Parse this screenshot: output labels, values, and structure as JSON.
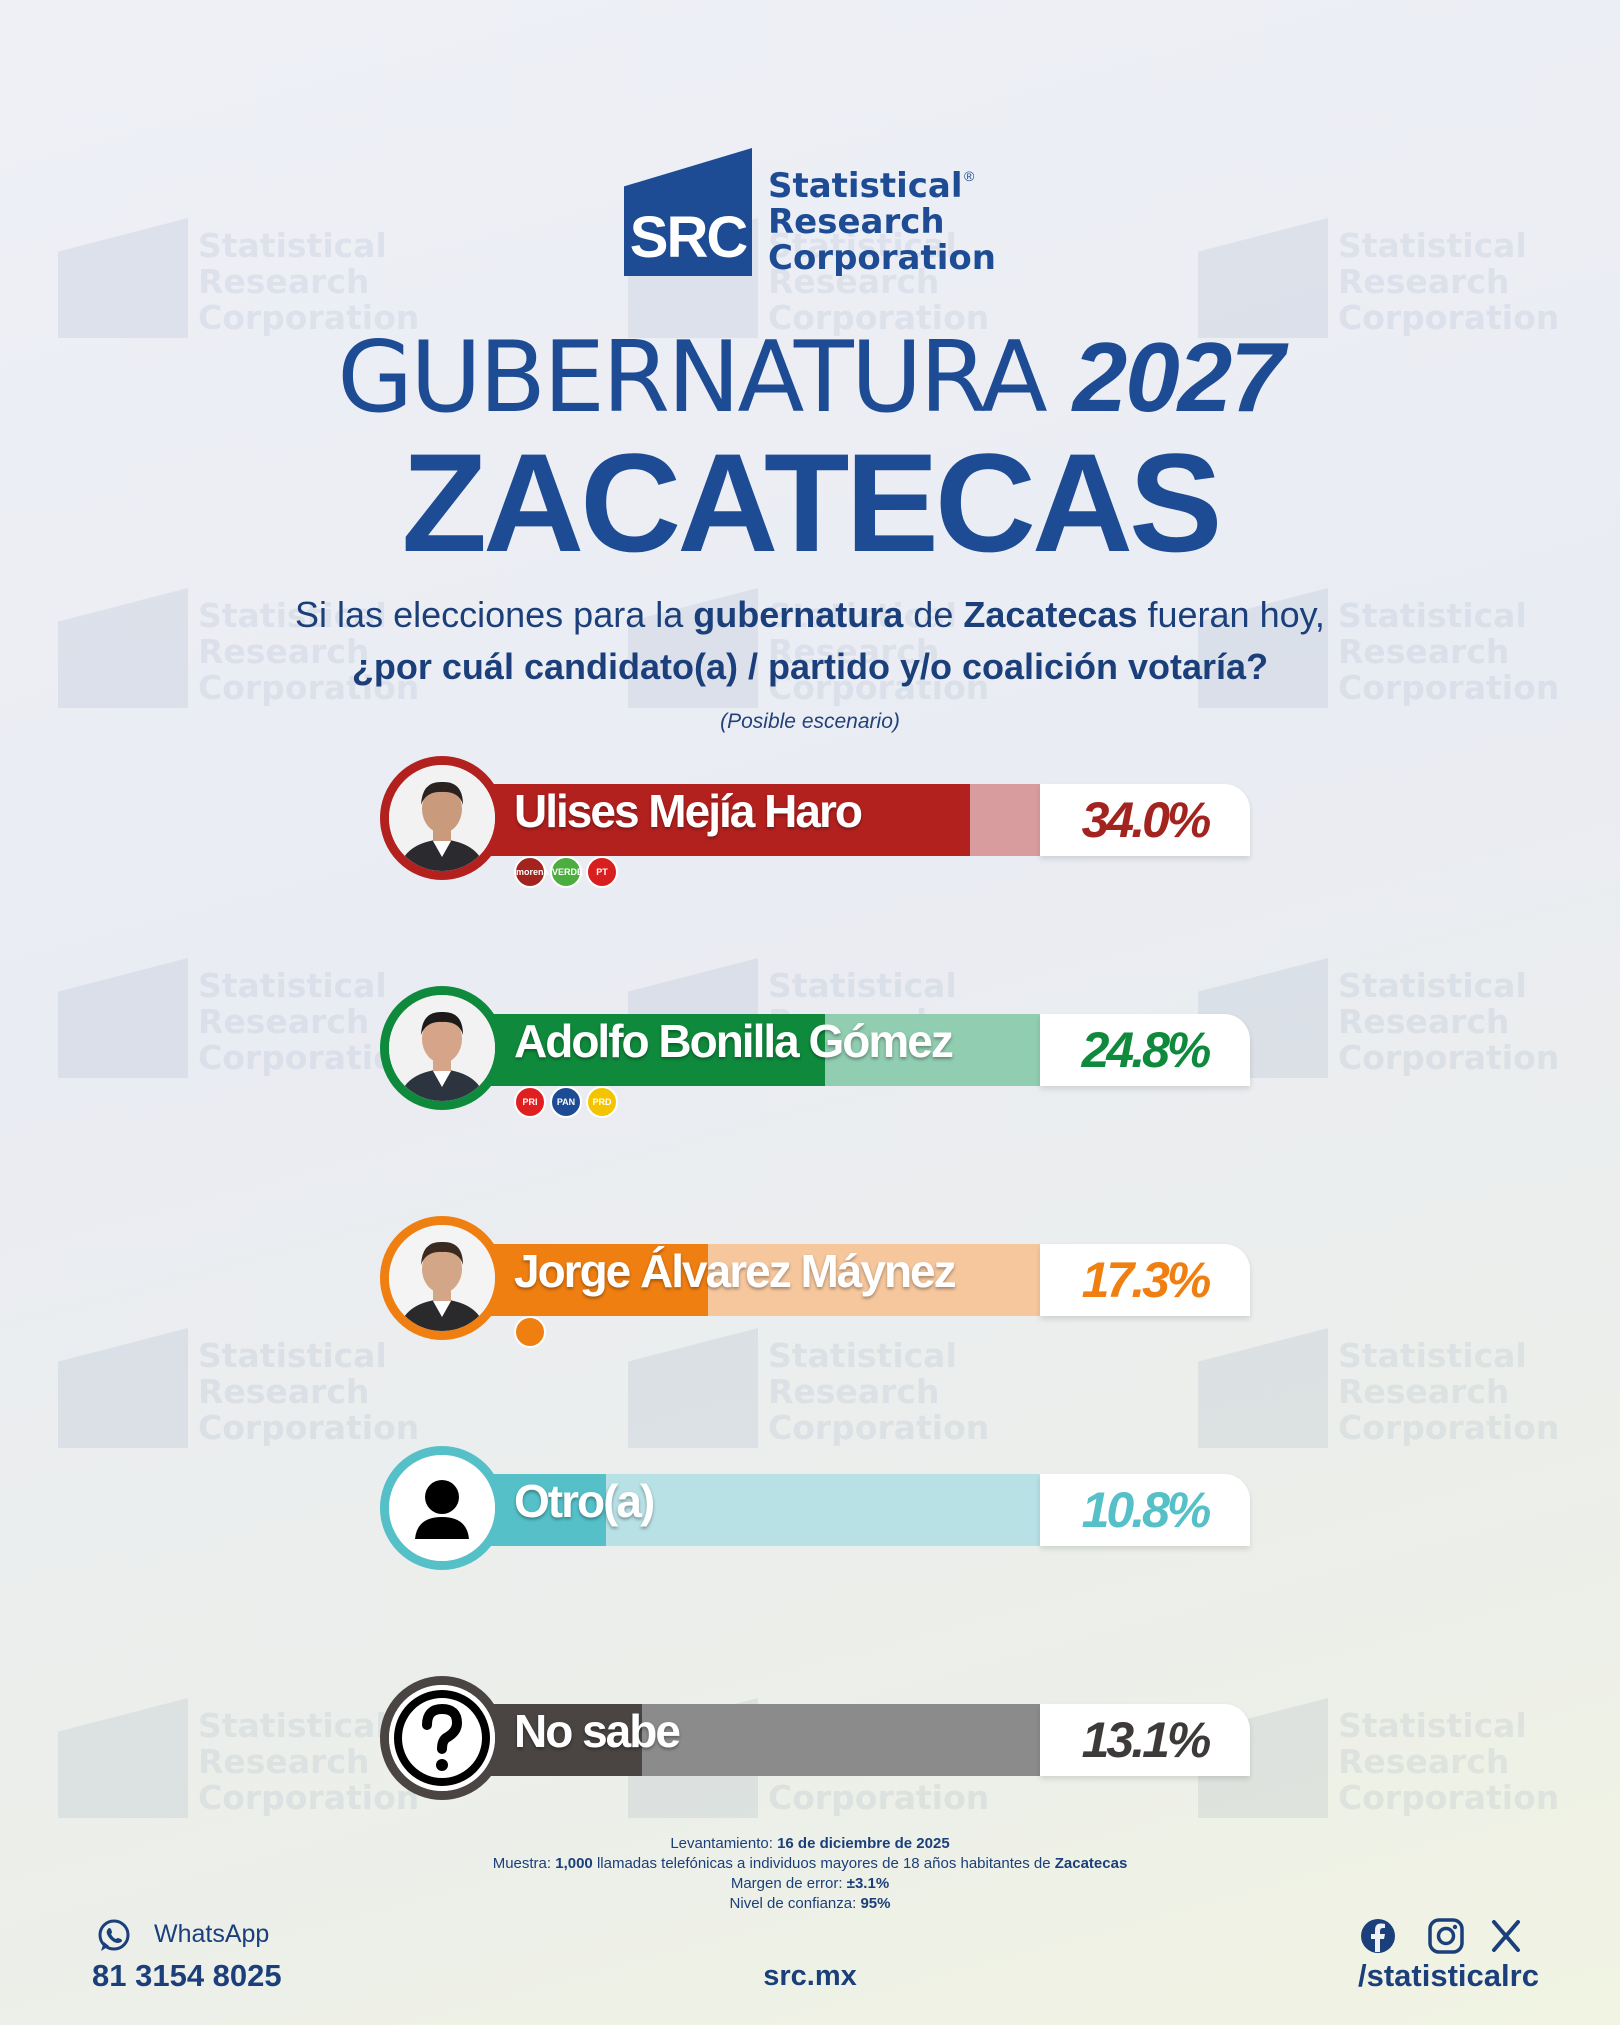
{
  "brand": {
    "abbr": "SRC",
    "name_lines": [
      "Statistical",
      "Research",
      "Corporation"
    ],
    "registered_mark": "®",
    "color": "#1d4c94"
  },
  "title": {
    "line1_light": "GUBERNATURA ",
    "line1_year": "2027",
    "state": "ZACATECAS"
  },
  "question": {
    "p1": "Si las elecciones para la ",
    "b1": "gubernatura",
    "p2": " de ",
    "b2": "Zacatecas",
    "p3": " fueran hoy,",
    "line2": "¿por cuál candidato(a) / partido y/o coalición votaría?",
    "scenario": "(Posible escenario)"
  },
  "chart_data": {
    "type": "bar",
    "orientation": "horizontal",
    "categories": [
      "Ulises Mejía Haro",
      "Adolfo Bonilla Gómez",
      "Jorge Álvarez Máynez",
      "Otro(a)",
      "No sabe"
    ],
    "values": [
      34.0,
      24.8,
      17.3,
      10.8,
      13.1
    ],
    "value_labels": [
      "34.0%",
      "24.8%",
      "17.3%",
      "10.8%",
      "13.1%"
    ],
    "unit": "%",
    "xlim": [
      0,
      100
    ],
    "colors": [
      "#b3211f",
      "#0f8a3c",
      "#f07f12",
      "#55c0c8",
      "#4a4443"
    ],
    "light_colors": [
      "#d99c9e",
      "#91cdb0",
      "#f6c79d",
      "#b8e1e6",
      "#8c8b8b"
    ],
    "pct_colors": [
      "#a3241f",
      "#0f8a3c",
      "#f07f12",
      "#55c0c8",
      "#3f3a3a"
    ],
    "parties": [
      [
        {
          "icon": "morena-logo-icon",
          "label": "morena",
          "color": "#a3241f"
        },
        {
          "icon": "verde-logo-icon",
          "label": "VERDE",
          "color": "#4bae3f"
        },
        {
          "icon": "pt-logo-icon",
          "label": "PT",
          "color": "#d81e1e"
        }
      ],
      [
        {
          "icon": "pri-logo-icon",
          "label": "PRI",
          "color": "#e02020"
        },
        {
          "icon": "pan-logo-icon",
          "label": "PAN",
          "color": "#1d4c94"
        },
        {
          "icon": "prd-logo-icon",
          "label": "PRD",
          "color": "#f5c400"
        }
      ],
      [
        {
          "icon": "movimiento-ciudadano-logo-icon",
          "label": "",
          "color": "#f07f12"
        }
      ],
      [],
      []
    ],
    "avatar_icons": [
      "candidate-photo-icon",
      "candidate-photo-icon",
      "candidate-photo-icon",
      "person-silhouette-icon",
      "question-mark-icon"
    ]
  },
  "methodology": {
    "fieldwork_label": "Levantamiento: ",
    "fieldwork_value": "16 de diciembre de 2025",
    "sample_label": "Muestra: ",
    "sample_value": "1,000",
    "sample_text": " llamadas telefónicas a individuos mayores de 18 años habitantes de ",
    "sample_place": "Zacatecas",
    "margin_label": "Margen de error: ",
    "margin_value": "±3.1%",
    "confidence_label": "Nivel de confianza: ",
    "confidence_value": "95%"
  },
  "footer": {
    "whatsapp_label": "WhatsApp",
    "whatsapp_number": "81 3154 8025",
    "website": "src.mx",
    "social_handle": "/statisticalrc"
  }
}
